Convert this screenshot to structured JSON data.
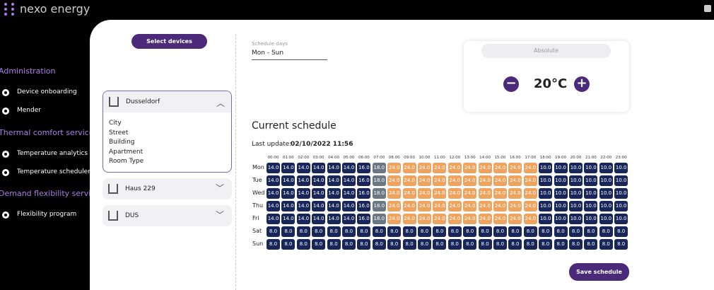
{
  "header": {
    "brand": "nexo energy"
  },
  "sidebar": {
    "sections": [
      {
        "title": "Administration",
        "items": [
          "Device onboarding",
          "Mender"
        ]
      },
      {
        "title": "Thermal comfort service",
        "items": [
          "Temperature analytics",
          "Temperature scheduler"
        ]
      },
      {
        "title": "Demand flexibility service",
        "items": [
          "Flexibility program"
        ]
      }
    ]
  },
  "devices": {
    "button": "Select devices",
    "groups": [
      {
        "name": "Dusseldorf",
        "fields": [
          "City",
          "Street",
          "Building",
          "Apartment",
          "Room Type"
        ]
      },
      {
        "name": "Haus 229"
      },
      {
        "name": "DUS"
      }
    ]
  },
  "schedule_days": {
    "label": "Schedule days",
    "value": "Mon - Sun"
  },
  "setpoint": {
    "mode": "Absolute",
    "value": "20°C"
  },
  "schedule": {
    "title": "Current schedule",
    "last_update_label": "Last update:",
    "last_update": "02/10/2022 11:56",
    "hours": [
      "00:00",
      "01:00",
      "02:00",
      "03:00",
      "04:00",
      "05:00",
      "06:00",
      "07:00",
      "08:00",
      "09:00",
      "10:00",
      "11:00",
      "12:00",
      "13:00",
      "14:00",
      "15:00",
      "16:00",
      "17:00",
      "18:00",
      "19:00",
      "20:00",
      "21:00",
      "22:00",
      "23:00"
    ],
    "rows": [
      {
        "day": "Mon",
        "values": [
          "14.0",
          "14.0",
          "14.0",
          "14.0",
          "14.0",
          "14.0",
          "16.0",
          "18.0",
          "24.0",
          "24.0",
          "24.0",
          "24.0",
          "24.0",
          "24.0",
          "24.0",
          "24.0",
          "24.0",
          "24.0",
          "10.0",
          "10.0",
          "10.0",
          "10.0",
          "10.0",
          "10.0"
        ]
      },
      {
        "day": "Tue",
        "values": [
          "14.0",
          "14.0",
          "14.0",
          "14.0",
          "14.0",
          "14.0",
          "16.0",
          "18.0",
          "24.0",
          "24.0",
          "24.0",
          "24.0",
          "24.0",
          "24.0",
          "24.0",
          "24.0",
          "24.0",
          "24.0",
          "10.0",
          "10.0",
          "10.0",
          "10.0",
          "10.0",
          "10.0"
        ]
      },
      {
        "day": "Wed",
        "values": [
          "14.0",
          "14.0",
          "14.0",
          "14.0",
          "14.0",
          "14.0",
          "16.0",
          "18.0",
          "24.0",
          "24.0",
          "24.0",
          "24.0",
          "24.0",
          "24.0",
          "24.0",
          "24.0",
          "24.0",
          "24.0",
          "10.0",
          "10.0",
          "10.0",
          "10.0",
          "10.0",
          "10.0"
        ]
      },
      {
        "day": "Thu",
        "values": [
          "14.0",
          "14.0",
          "14.0",
          "14.0",
          "14.0",
          "14.0",
          "16.0",
          "18.0",
          "24.0",
          "24.0",
          "24.0",
          "24.0",
          "24.0",
          "24.0",
          "24.0",
          "24.0",
          "24.0",
          "24.0",
          "10.0",
          "10.0",
          "10.0",
          "10.0",
          "10.0",
          "10.0"
        ]
      },
      {
        "day": "Fri",
        "values": [
          "14.0",
          "14.0",
          "14.0",
          "14.0",
          "14.0",
          "14.0",
          "16.0",
          "18.0",
          "24.0",
          "24.0",
          "24.0",
          "24.0",
          "24.0",
          "24.0",
          "24.0",
          "24.0",
          "24.0",
          "24.0",
          "10.0",
          "10.0",
          "10.0",
          "10.0",
          "10.0",
          "10.0"
        ]
      },
      {
        "day": "Sat",
        "values": [
          "8.0",
          "8.0",
          "8.0",
          "8.0",
          "8.0",
          "8.0",
          "8.0",
          "8.0",
          "8.0",
          "8.0",
          "8.0",
          "8.0",
          "8.0",
          "8.0",
          "8.0",
          "8.0",
          "8.0",
          "8.0",
          "8.0",
          "8.0",
          "8.0",
          "8.0",
          "8.0",
          "8.0"
        ]
      },
      {
        "day": "Sun",
        "values": [
          "8.0",
          "8.0",
          "8.0",
          "8.0",
          "8.0",
          "8.0",
          "8.0",
          "8.0",
          "8.0",
          "8.0",
          "8.0",
          "8.0",
          "8.0",
          "8.0",
          "8.0",
          "8.0",
          "8.0",
          "8.0",
          "8.0",
          "8.0",
          "8.0",
          "8.0",
          "8.0",
          "8.0"
        ]
      }
    ],
    "colors": {
      "14.0": "#18265a",
      "16.0": "#18265a",
      "10.0": "#18265a",
      "8.0": "#18265a",
      "18.0": "#6c7784",
      "24.0": "#eea35f"
    }
  },
  "save_button": "Save schedule"
}
